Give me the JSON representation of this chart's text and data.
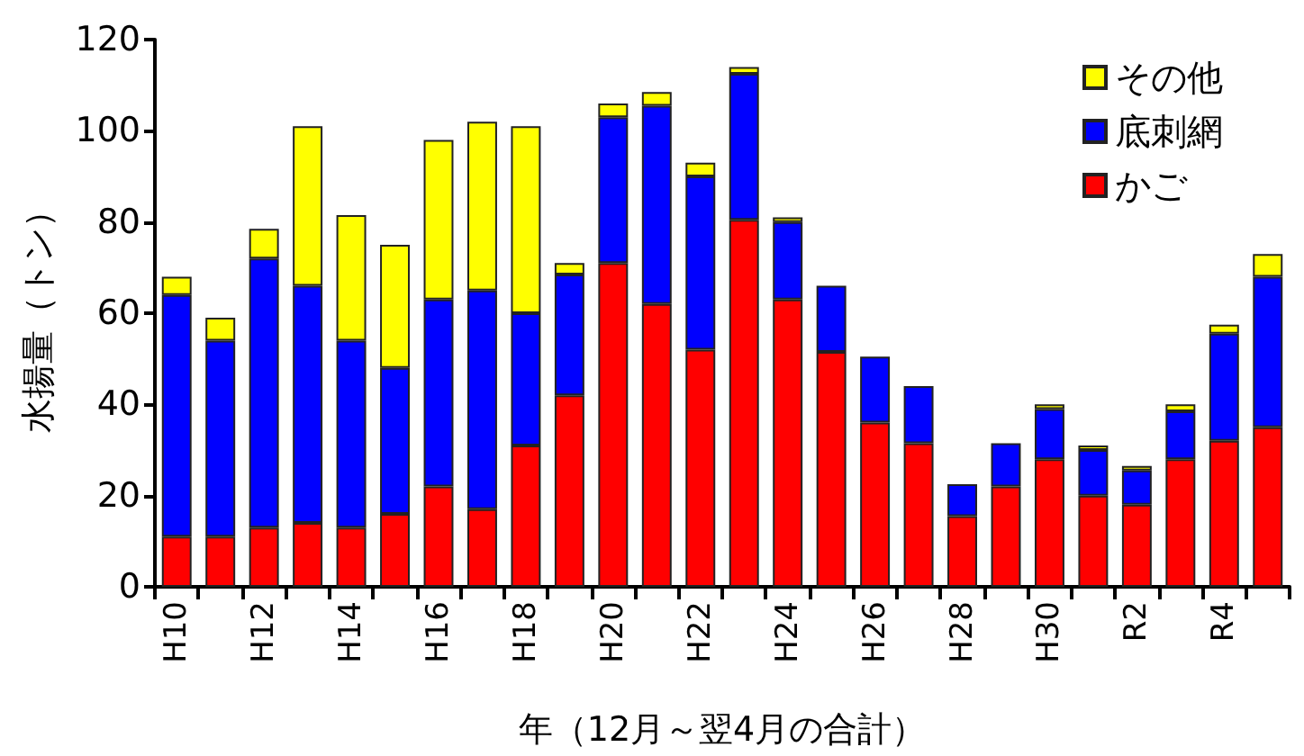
{
  "chart_data": {
    "type": "bar",
    "stacked": true,
    "xlabel": "年（12月～翌4月の合計）",
    "ylabel": "水揚量（トン）",
    "categories": [
      "H10",
      null,
      "H12",
      null,
      "H14",
      null,
      "H16",
      null,
      "H18",
      null,
      "H20",
      null,
      "H22",
      null,
      "H24",
      null,
      "H26",
      null,
      "H28",
      null,
      "H30",
      null,
      "R2",
      null,
      "R4",
      null
    ],
    "series": [
      {
        "name": "かご",
        "color": "#ff0000",
        "values": [
          11,
          11,
          13,
          14,
          13,
          16,
          22,
          17,
          31,
          42,
          71,
          62,
          52,
          80.5,
          63,
          51.5,
          36,
          31.5,
          15.5,
          22,
          28,
          20,
          18,
          28,
          32,
          35
        ]
      },
      {
        "name": "底刺網",
        "color": "#0000ff",
        "values": [
          53,
          43,
          59,
          52,
          41,
          32,
          41,
          48,
          29,
          26.5,
          32,
          43.5,
          38,
          32,
          17,
          14.5,
          14.5,
          12.5,
          7,
          9.5,
          11,
          10,
          7.5,
          10.5,
          23.5,
          33
        ]
      },
      {
        "name": "その他",
        "color": "#ffff00",
        "values": [
          4,
          5,
          6.5,
          35,
          27.5,
          27,
          35,
          37,
          41,
          2.5,
          3,
          3,
          3,
          1.5,
          1,
          null,
          null,
          null,
          null,
          null,
          1,
          1,
          1,
          1.5,
          2,
          5
        ]
      }
    ],
    "ylim": [
      0,
      120
    ],
    "yticks": [
      0,
      20,
      40,
      60,
      80,
      100,
      120
    ],
    "grid": false,
    "legend": "top right"
  }
}
